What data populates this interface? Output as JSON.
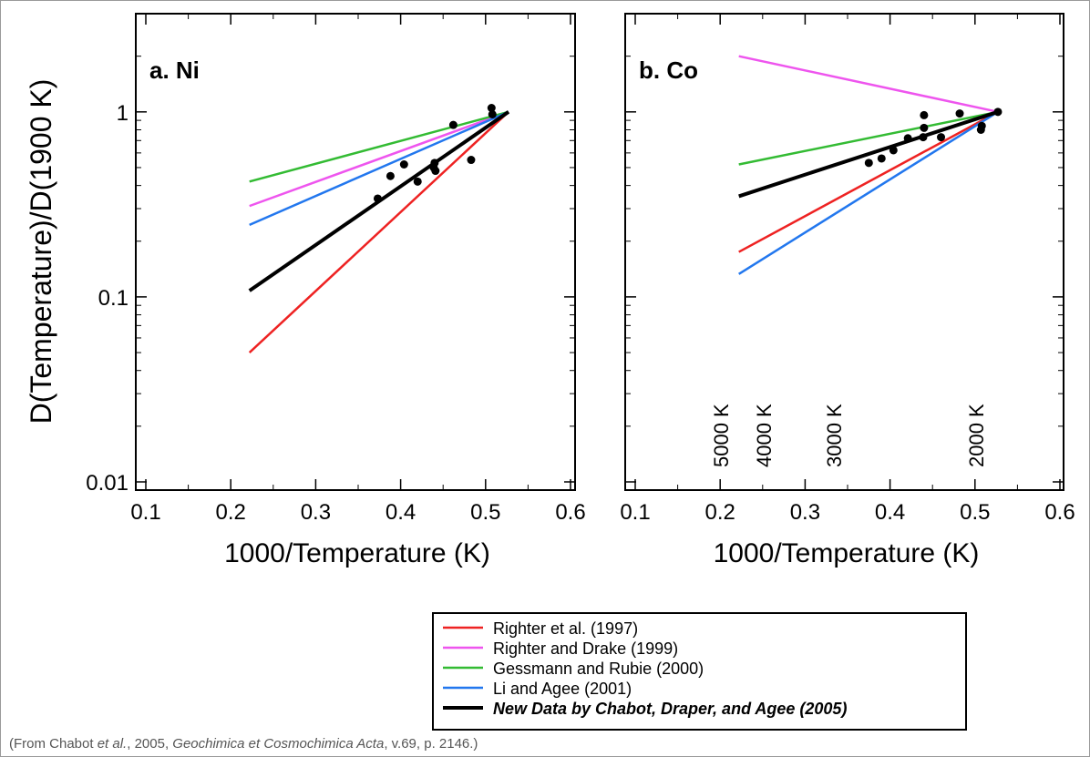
{
  "ylabel": "D(Temperature)/D(1900 K)",
  "caption": {
    "prefix": "(From Chabot ",
    "etal": "et al.",
    "middle": ", 2005, ",
    "journal": "Geochimica et Cosmochimica Acta",
    "suffix": ", v.69, p. 2146.)"
  },
  "colors": {
    "righter1997": "#ee2222",
    "righter1999": "#ee55ee",
    "gessmann": "#33bb33",
    "li": "#2277ee",
    "chabot": "#000000"
  },
  "legend": [
    {
      "key": "righter1997",
      "label": "Righter et al. (1997)",
      "italic": false
    },
    {
      "key": "righter1999",
      "label": "Righter and Drake (1999)",
      "italic": false
    },
    {
      "key": "gessmann",
      "label": "Gessmann and Rubie (2000)",
      "italic": false
    },
    {
      "key": "li",
      "label": "Li and Agee (2001)",
      "italic": false
    },
    {
      "key": "chabot",
      "label": "New Data by Chabot, Draper, and Agee (2005)",
      "italic": true
    }
  ],
  "chart_data": [
    {
      "type": "line",
      "title": "a. Ni",
      "xlabel": "1000/Temperature (K)",
      "ylabel": "D(Temperature)/D(1900 K)",
      "xlim": [
        0.1,
        0.6
      ],
      "ylim": [
        0.01,
        2.5
      ],
      "yscale": "log",
      "xticks": [
        "0.1",
        "0.2",
        "0.3",
        "0.4",
        "0.5",
        "0.6"
      ],
      "yticks": [
        {
          "v": 0.01,
          "label": "0.01"
        },
        {
          "v": 0.1,
          "label": "0.1"
        },
        {
          "v": 1,
          "label": "1"
        }
      ],
      "series": [
        {
          "key": "righter1997",
          "name": "Righter et al. (1997)",
          "x": [
            0.222,
            0.527
          ],
          "y": [
            0.05,
            1.0
          ]
        },
        {
          "key": "righter1999",
          "name": "Righter and Drake (1999)",
          "x": [
            0.222,
            0.527
          ],
          "y": [
            0.31,
            1.0
          ]
        },
        {
          "key": "gessmann",
          "name": "Gessmann and Rubie (2000)",
          "x": [
            0.222,
            0.527
          ],
          "y": [
            0.42,
            1.0
          ]
        },
        {
          "key": "li",
          "name": "Li and Agee (2001)",
          "x": [
            0.222,
            0.527
          ],
          "y": [
            0.245,
            1.0
          ]
        },
        {
          "key": "chabot",
          "name": "New Data by Chabot, Draper, and Agee (2005)",
          "x": [
            0.222,
            0.527
          ],
          "y": [
            0.108,
            1.0
          ]
        }
      ],
      "points": [
        {
          "x": 0.373,
          "y": 0.34
        },
        {
          "x": 0.388,
          "y": 0.45
        },
        {
          "x": 0.404,
          "y": 0.52
        },
        {
          "x": 0.42,
          "y": 0.42
        },
        {
          "x": 0.439,
          "y": 0.5
        },
        {
          "x": 0.44,
          "y": 0.53
        },
        {
          "x": 0.441,
          "y": 0.48
        },
        {
          "x": 0.462,
          "y": 0.85
        },
        {
          "x": 0.483,
          "y": 0.55
        },
        {
          "x": 0.507,
          "y": 1.05
        },
        {
          "x": 0.508,
          "y": 0.97
        }
      ],
      "temperature_markers": []
    },
    {
      "type": "line",
      "title": "b. Co",
      "xlabel": "1000/Temperature (K)",
      "ylabel": "",
      "xlim": [
        0.1,
        0.6
      ],
      "ylim": [
        0.01,
        2.5
      ],
      "yscale": "log",
      "xticks": [
        "0.1",
        "0.2",
        "0.3",
        "0.4",
        "0.5",
        "0.6"
      ],
      "yticks": [],
      "series": [
        {
          "key": "righter1997",
          "name": "Righter et al. (1997)",
          "x": [
            0.222,
            0.527
          ],
          "y": [
            0.175,
            1.0
          ]
        },
        {
          "key": "righter1999",
          "name": "Righter and Drake (1999)",
          "x": [
            0.222,
            0.527
          ],
          "y": [
            2.0,
            1.0
          ]
        },
        {
          "key": "gessmann",
          "name": "Gessmann and Rubie (2000)",
          "x": [
            0.222,
            0.527
          ],
          "y": [
            0.52,
            1.0
          ]
        },
        {
          "key": "li",
          "name": "Li and Agee (2001)",
          "x": [
            0.222,
            0.527
          ],
          "y": [
            0.133,
            1.0
          ]
        },
        {
          "key": "chabot",
          "name": "New Data by Chabot, Draper, and Agee (2005)",
          "x": [
            0.222,
            0.527
          ],
          "y": [
            0.35,
            1.0
          ]
        }
      ],
      "points": [
        {
          "x": 0.375,
          "y": 0.53
        },
        {
          "x": 0.39,
          "y": 0.56
        },
        {
          "x": 0.404,
          "y": 0.62
        },
        {
          "x": 0.421,
          "y": 0.72
        },
        {
          "x": 0.439,
          "y": 0.73
        },
        {
          "x": 0.44,
          "y": 0.82
        },
        {
          "x": 0.44,
          "y": 0.96
        },
        {
          "x": 0.46,
          "y": 0.73
        },
        {
          "x": 0.482,
          "y": 0.98
        },
        {
          "x": 0.507,
          "y": 0.8
        },
        {
          "x": 0.508,
          "y": 0.84
        },
        {
          "x": 0.527,
          "y": 1.0
        }
      ],
      "temperature_markers": [
        {
          "x": 0.2,
          "label": "5000 K"
        },
        {
          "x": 0.25,
          "label": "4000 K"
        },
        {
          "x": 0.333,
          "label": "3000 K"
        },
        {
          "x": 0.5,
          "label": "2000 K"
        }
      ]
    }
  ]
}
